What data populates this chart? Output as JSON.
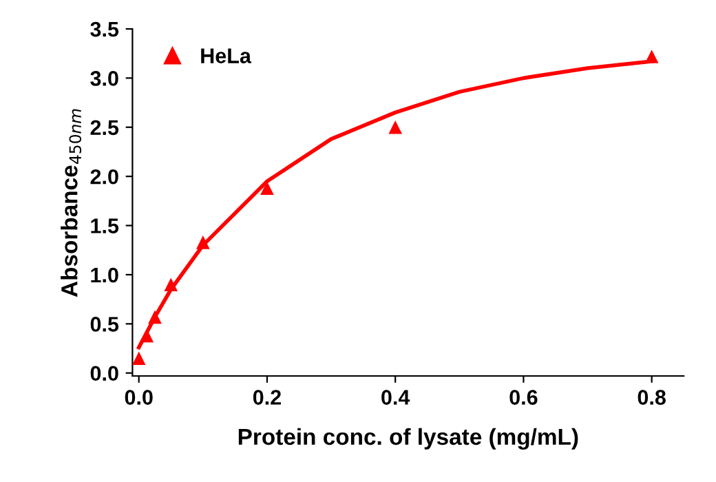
{
  "chart_data": {
    "type": "scatter",
    "xlabel": "Protein conc. of lysate (mg/mL)",
    "ylabel": "Absorbance$_{450nm}$",
    "xlim": [
      -0.01,
      0.85
    ],
    "ylim": [
      -0.03,
      3.5
    ],
    "xticks": [
      {
        "value": 0,
        "label": "0.0"
      },
      0.2,
      0.4,
      0.6,
      0.8
    ],
    "yticks": [
      {
        "value": 0,
        "label": "0.0"
      },
      0.5,
      {
        "value": 1,
        "label": "1.0"
      },
      1.5,
      {
        "value": 2,
        "label": "2.0"
      },
      2.5,
      {
        "value": 3,
        "label": "3.0"
      },
      3.5
    ],
    "grid": false,
    "legend": "top left",
    "series": [
      {
        "name": "HeLa",
        "marker": "triangle",
        "color": "#ff0000",
        "x": [
          0,
          0.0125,
          0.025,
          0.05,
          0.1,
          0.2,
          0.4,
          0.8
        ],
        "values": [
          0.15,
          0.38,
          0.57,
          0.9,
          1.33,
          1.88,
          2.5,
          3.22
        ]
      },
      {
        "type": "line",
        "marker": "none",
        "line_style": "solid",
        "color": "#ff0000",
        "x": [
          0,
          0.025,
          0.05,
          0.1,
          0.2,
          0.3,
          0.4,
          0.5,
          0.6,
          0.7,
          0.8
        ],
        "values": [
          0.26,
          0.57,
          0.85,
          1.3,
          1.95,
          2.38,
          2.65,
          2.86,
          3.0,
          3.1,
          3.17
        ]
      }
    ]
  }
}
